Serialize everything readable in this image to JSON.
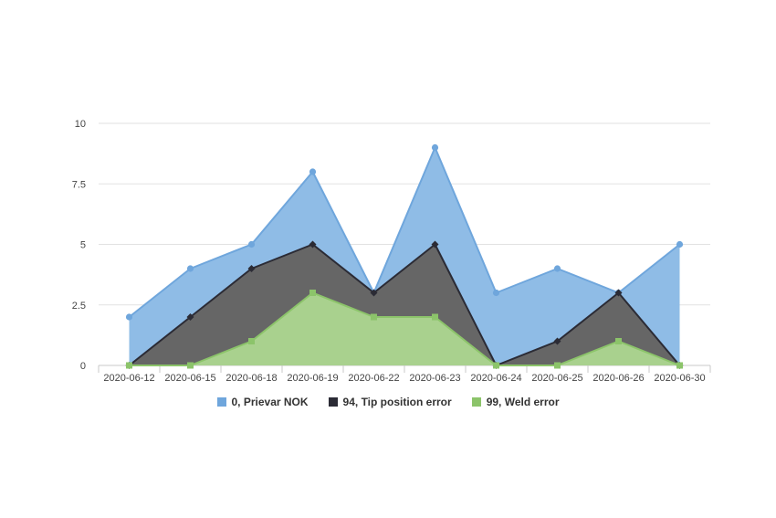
{
  "chart_data": {
    "type": "area",
    "categories": [
      "2020-06-12",
      "2020-06-15",
      "2020-06-18",
      "2020-06-19",
      "2020-06-22",
      "2020-06-23",
      "2020-06-24",
      "2020-06-25",
      "2020-06-26",
      "2020-06-30"
    ],
    "y_ticks": [
      "0",
      "2.5",
      "5",
      "7.5",
      "10"
    ],
    "ylim": [
      0,
      10
    ],
    "grid": true,
    "legend_position": "bottom-center",
    "series": [
      {
        "name": "0, Prievar NOK",
        "values": [
          2,
          4,
          5,
          8,
          3,
          9,
          3,
          4,
          3,
          5
        ],
        "color": "#8fbce6",
        "line_color": "#6fa6dc",
        "marker": "circle"
      },
      {
        "name": "94, Tip position error",
        "values": [
          0,
          2,
          4,
          5,
          3,
          5,
          0,
          1,
          3,
          0
        ],
        "color": "#666666",
        "line_color": "#2b2b35",
        "marker": "diamond"
      },
      {
        "name": "99, Weld error",
        "values": [
          0,
          0,
          1,
          3,
          2,
          2,
          0,
          0,
          1,
          0
        ],
        "color": "#a9d18e",
        "line_color": "#8cc46a",
        "marker": "square"
      }
    ]
  }
}
